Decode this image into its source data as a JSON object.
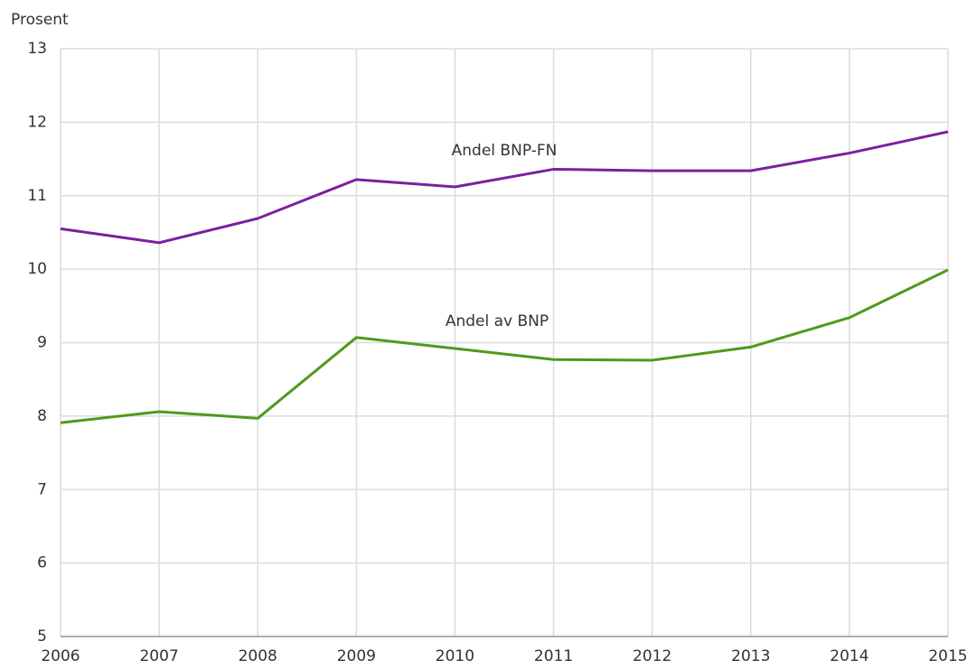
{
  "chart_data": {
    "type": "line",
    "y_label": "Prosent",
    "x": [
      2006,
      2007,
      2008,
      2009,
      2010,
      2011,
      2012,
      2013,
      2014,
      2015
    ],
    "series": [
      {
        "name": "Andel BNP-FN",
        "color": "#7b1fa2",
        "values": [
          10.55,
          10.36,
          10.69,
          11.22,
          11.12,
          11.36,
          11.34,
          11.34,
          11.58,
          11.87
        ]
      },
      {
        "name": "Andel av BNP",
        "color": "#4e9a1a",
        "values": [
          7.91,
          8.06,
          7.97,
          9.07,
          8.92,
          8.77,
          8.76,
          8.94,
          9.34,
          9.99
        ]
      }
    ],
    "xlim": [
      2006,
      2015
    ],
    "xticks": [
      2006,
      2007,
      2008,
      2009,
      2010,
      2011,
      2012,
      2013,
      2014,
      2015
    ],
    "ylim": [
      5,
      13
    ],
    "yticks": [
      5,
      6,
      7,
      8,
      9,
      10,
      11,
      12,
      13
    ],
    "grid": true
  }
}
